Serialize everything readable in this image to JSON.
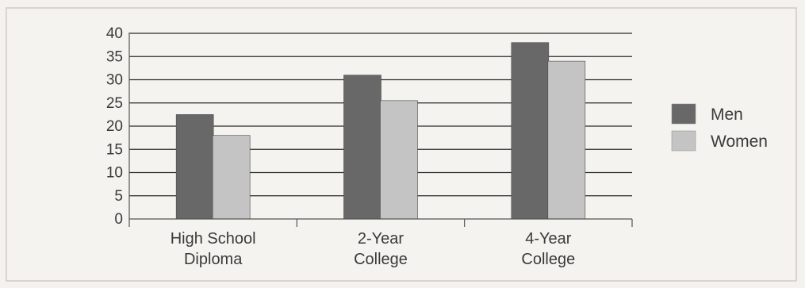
{
  "chart_data": {
    "type": "bar",
    "categories": [
      [
        "High School",
        "Diploma"
      ],
      [
        "2-Year",
        "College"
      ],
      [
        "4-Year",
        "College"
      ]
    ],
    "series": [
      {
        "name": "Men",
        "values": [
          22.5,
          31,
          38
        ],
        "color": "#686868"
      },
      {
        "name": "Women",
        "values": [
          18,
          25.5,
          34
        ],
        "color": "#c4c4c4"
      }
    ],
    "ylim": [
      0,
      40
    ],
    "yticks": [
      0,
      5,
      10,
      15,
      20,
      25,
      30,
      35,
      40
    ],
    "grid": true,
    "legend_position": "right",
    "title": "",
    "xlabel": "",
    "ylabel": ""
  }
}
